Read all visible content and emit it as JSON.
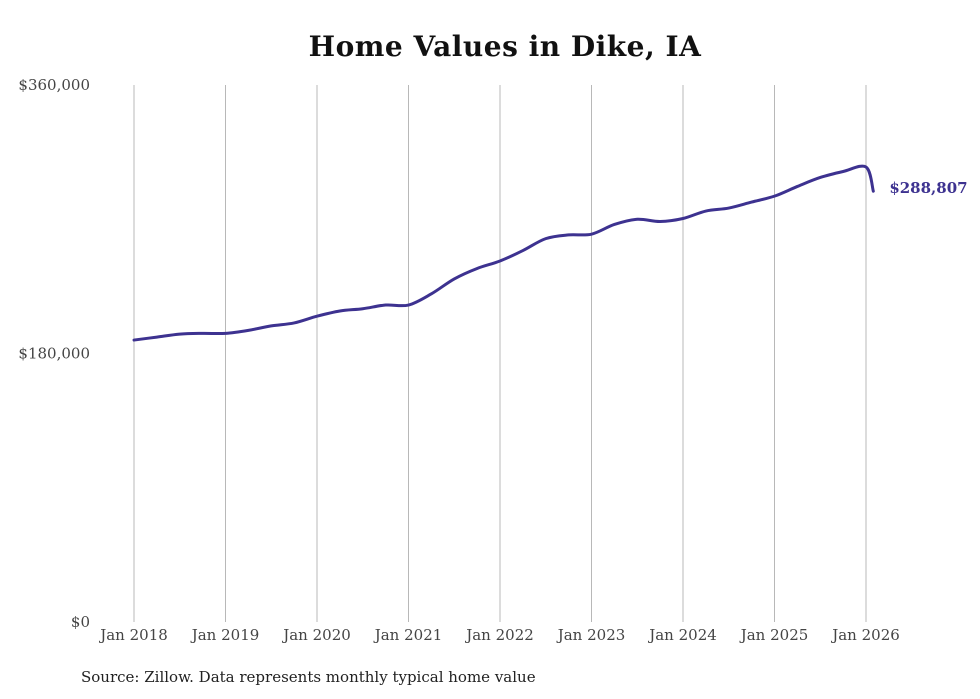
{
  "colors": {
    "line": "#3d3290",
    "grid": "#b8b8b8",
    "text": "#444444"
  },
  "source": "Source: Zillow. Data represents monthly typical home value",
  "chart_data": {
    "type": "line",
    "title": "Home Values in Dike, IA",
    "xlabel": "",
    "ylabel": "",
    "ylim": [
      0,
      360000
    ],
    "y_ticks": [
      {
        "value": 0,
        "label": "$0"
      },
      {
        "value": 180000,
        "label": "$180,000"
      },
      {
        "value": 360000,
        "label": "$360,000"
      }
    ],
    "x_ticks": [
      {
        "value": 2018,
        "label": "Jan 2018"
      },
      {
        "value": 2019,
        "label": "Jan 2019"
      },
      {
        "value": 2020,
        "label": "Jan 2020"
      },
      {
        "value": 2021,
        "label": "Jan 2021"
      },
      {
        "value": 2022,
        "label": "Jan 2022"
      },
      {
        "value": 2023,
        "label": "Jan 2023"
      },
      {
        "value": 2024,
        "label": "Jan 2024"
      },
      {
        "value": 2025,
        "label": "Jan 2025"
      },
      {
        "value": 2026,
        "label": "Jan 2026"
      }
    ],
    "xlim": [
      2018,
      2026
    ],
    "grid": "vertical",
    "end_label": "$288,807",
    "series": [
      {
        "name": "Typical home value",
        "x": [
          2018.0,
          2018.25,
          2018.5,
          2018.75,
          2019.0,
          2019.25,
          2019.5,
          2019.75,
          2020.0,
          2020.25,
          2020.5,
          2020.75,
          2021.0,
          2021.25,
          2021.5,
          2021.75,
          2022.0,
          2022.25,
          2022.5,
          2022.75,
          2023.0,
          2023.25,
          2023.5,
          2023.75,
          2024.0,
          2024.25,
          2024.5,
          2024.75,
          2025.0,
          2025.25,
          2025.5,
          2025.75,
          2026.0,
          2026.08
        ],
        "values": [
          189000,
          191000,
          193000,
          193500,
          193500,
          195500,
          198500,
          200500,
          205000,
          208500,
          210000,
          212500,
          212500,
          220000,
          230000,
          237000,
          242000,
          249000,
          257000,
          259500,
          260000,
          266500,
          270000,
          268500,
          270500,
          275500,
          277500,
          281500,
          285500,
          292000,
          298000,
          302000,
          305000,
          288807
        ]
      }
    ]
  }
}
